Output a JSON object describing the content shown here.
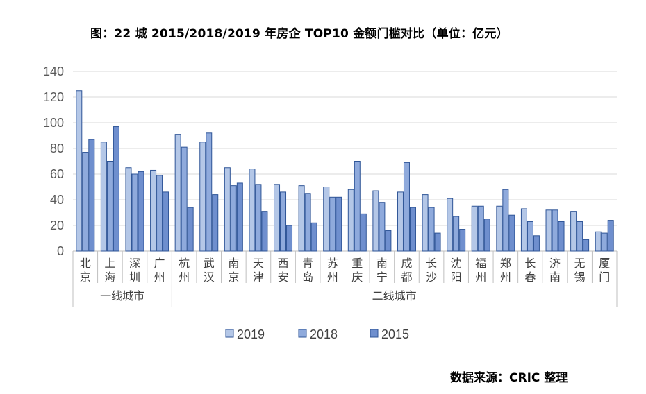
{
  "title": "图：22 城 2015/2018/2019 年房企 TOP10 金额门槛对比（单位：亿元）",
  "source": "数据来源：CRIC 整理",
  "colors": {
    "2019": "#b4c7e7",
    "2018": "#8faadc",
    "2015": "#6f8fce",
    "stroke": "#2f5597",
    "grid": "#d9d9d9",
    "axis": "#bfbfbf"
  },
  "chart_data": {
    "type": "bar",
    "title": "图：22 城 2015/2018/2019 年房企 TOP10 金额门槛对比（单位：亿元）",
    "xlabel": "",
    "ylabel": "",
    "ylim": [
      0,
      140
    ],
    "yticks": [
      0,
      20,
      40,
      60,
      80,
      100,
      120,
      140
    ],
    "grid": true,
    "legend_position": "bottom",
    "categories": [
      "北京",
      "上海",
      "深圳",
      "广州",
      "杭州",
      "武汉",
      "南京",
      "天津",
      "西安",
      "青岛",
      "苏州",
      "重庆",
      "南宁",
      "成都",
      "长沙",
      "沈阳",
      "福州",
      "郑州",
      "长春",
      "济南",
      "无锡",
      "厦门"
    ],
    "groups": [
      {
        "label": "一线城市",
        "count": 4
      },
      {
        "label": "二线城市",
        "count": 18
      }
    ],
    "series": [
      {
        "name": "2019",
        "values": [
          125,
          85,
          65,
          63,
          91,
          85,
          65,
          64,
          52,
          51,
          50,
          48,
          47,
          46,
          44,
          41,
          35,
          35,
          33,
          32,
          31,
          15
        ]
      },
      {
        "name": "2018",
        "values": [
          77,
          70,
          60,
          59,
          81,
          92,
          51,
          52,
          46,
          45,
          42,
          70,
          38,
          69,
          34,
          27,
          35,
          48,
          23,
          32,
          23,
          14
        ]
      },
      {
        "name": "2015",
        "values": [
          87,
          97,
          62,
          46,
          34,
          44,
          53,
          31,
          20,
          22,
          42,
          29,
          16,
          34,
          14,
          17,
          25,
          28,
          12,
          23,
          9,
          24
        ]
      }
    ]
  }
}
